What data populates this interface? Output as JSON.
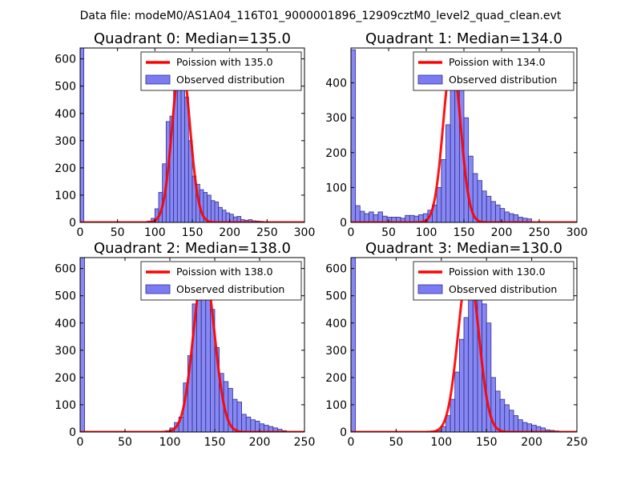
{
  "figure": {
    "suptitle": "Data file: modeM0/AS1A04_116T01_9000001896_12909cztM0_level2_quad_clean.evt"
  },
  "colors": {
    "bar_fill": "#7b7bf3",
    "bar_stroke": "#30308a",
    "curve": "#ff0000",
    "frame": "#000000",
    "legend_border": "#000000"
  },
  "chart_data": [
    {
      "type": "bar",
      "title": "Quadrant 0: Median=135.0",
      "xlim": [
        0,
        300
      ],
      "ylim": [
        0,
        640
      ],
      "xticks": [
        0,
        50,
        100,
        150,
        200,
        250,
        300
      ],
      "yticks": [
        0,
        100,
        200,
        300,
        400,
        500,
        600
      ],
      "bin_width": 5,
      "legend": [
        "Poission with 135.0",
        "Observed distribution"
      ],
      "legend_loc": "upper right",
      "poisson_mean": 135,
      "poisson_peak": 600,
      "bins": [
        [
          0,
          640
        ],
        [
          85,
          2
        ],
        [
          90,
          5
        ],
        [
          95,
          15
        ],
        [
          100,
          50
        ],
        [
          105,
          110
        ],
        [
          110,
          215
        ],
        [
          115,
          370
        ],
        [
          120,
          390
        ],
        [
          125,
          530
        ],
        [
          130,
          590
        ],
        [
          135,
          600
        ],
        [
          140,
          460
        ],
        [
          145,
          300
        ],
        [
          150,
          170
        ],
        [
          155,
          140
        ],
        [
          160,
          120
        ],
        [
          165,
          110
        ],
        [
          170,
          100
        ],
        [
          175,
          80
        ],
        [
          180,
          75
        ],
        [
          185,
          55
        ],
        [
          190,
          45
        ],
        [
          195,
          35
        ],
        [
          200,
          30
        ],
        [
          205,
          20
        ],
        [
          210,
          22
        ],
        [
          215,
          10
        ],
        [
          220,
          8
        ],
        [
          225,
          10
        ],
        [
          230,
          6
        ],
        [
          235,
          5
        ],
        [
          240,
          4
        ],
        [
          245,
          2
        ]
      ]
    },
    {
      "type": "bar",
      "title": "Quadrant 1: Median=134.0",
      "xlim": [
        0,
        300
      ],
      "ylim": [
        0,
        500
      ],
      "xticks": [
        0,
        50,
        100,
        150,
        200,
        250,
        300
      ],
      "yticks": [
        0,
        100,
        200,
        300,
        400
      ],
      "bin_width": 6,
      "legend": [
        "Poission with 134.0",
        "Observed distribution"
      ],
      "legend_loc": "upper right",
      "poisson_mean": 134,
      "poisson_peak": 465,
      "bins": [
        [
          0,
          495
        ],
        [
          6,
          48
        ],
        [
          12,
          32
        ],
        [
          18,
          25
        ],
        [
          24,
          30
        ],
        [
          30,
          22
        ],
        [
          36,
          30
        ],
        [
          42,
          18
        ],
        [
          48,
          15
        ],
        [
          54,
          15
        ],
        [
          60,
          15
        ],
        [
          66,
          12
        ],
        [
          72,
          20
        ],
        [
          78,
          20
        ],
        [
          84,
          18
        ],
        [
          90,
          22
        ],
        [
          96,
          25
        ],
        [
          102,
          35
        ],
        [
          108,
          50
        ],
        [
          114,
          100
        ],
        [
          120,
          180
        ],
        [
          126,
          280
        ],
        [
          132,
          390
        ],
        [
          138,
          470
        ],
        [
          144,
          380
        ],
        [
          150,
          300
        ],
        [
          156,
          190
        ],
        [
          162,
          140
        ],
        [
          168,
          120
        ],
        [
          174,
          90
        ],
        [
          180,
          75
        ],
        [
          186,
          60
        ],
        [
          192,
          50
        ],
        [
          198,
          40
        ],
        [
          204,
          30
        ],
        [
          210,
          25
        ],
        [
          216,
          22
        ],
        [
          222,
          15
        ],
        [
          228,
          12
        ],
        [
          234,
          10
        ]
      ]
    },
    {
      "type": "bar",
      "title": "Quadrant 2: Median=138.0",
      "xlim": [
        0,
        250
      ],
      "ylim": [
        0,
        640
      ],
      "xticks": [
        0,
        50,
        100,
        150,
        200,
        250
      ],
      "yticks": [
        0,
        100,
        200,
        300,
        400,
        500,
        600
      ],
      "bin_width": 5,
      "legend": [
        "Poission with 138.0",
        "Observed distribution"
      ],
      "legend_loc": "upper right",
      "poisson_mean": 138,
      "poisson_peak": 600,
      "bins": [
        [
          0,
          640
        ],
        [
          95,
          5
        ],
        [
          100,
          15
        ],
        [
          105,
          35
        ],
        [
          110,
          55
        ],
        [
          115,
          180
        ],
        [
          120,
          280
        ],
        [
          125,
          470
        ],
        [
          130,
          510
        ],
        [
          135,
          560
        ],
        [
          140,
          580
        ],
        [
          145,
          450
        ],
        [
          150,
          310
        ],
        [
          155,
          215
        ],
        [
          160,
          185
        ],
        [
          165,
          160
        ],
        [
          170,
          120
        ],
        [
          175,
          110
        ],
        [
          180,
          65
        ],
        [
          185,
          55
        ],
        [
          190,
          45
        ],
        [
          195,
          40
        ],
        [
          200,
          30
        ],
        [
          205,
          25
        ],
        [
          210,
          20
        ],
        [
          215,
          15
        ],
        [
          220,
          10
        ],
        [
          225,
          5
        ]
      ]
    },
    {
      "type": "bar",
      "title": "Quadrant 3: Median=130.0",
      "xlim": [
        0,
        250
      ],
      "ylim": [
        0,
        640
      ],
      "xticks": [
        0,
        50,
        100,
        150,
        200,
        250
      ],
      "yticks": [
        0,
        100,
        200,
        300,
        400,
        500,
        600
      ],
      "bin_width": 5,
      "legend": [
        "Poission with 130.0",
        "Observed distribution"
      ],
      "legend_loc": "upper right",
      "poisson_mean": 130,
      "poisson_peak": 600,
      "bins": [
        [
          0,
          640
        ],
        [
          95,
          5
        ],
        [
          100,
          20
        ],
        [
          105,
          60
        ],
        [
          110,
          120
        ],
        [
          115,
          220
        ],
        [
          120,
          340
        ],
        [
          125,
          420
        ],
        [
          130,
          530
        ],
        [
          135,
          590
        ],
        [
          140,
          580
        ],
        [
          145,
          470
        ],
        [
          150,
          400
        ],
        [
          155,
          200
        ],
        [
          160,
          150
        ],
        [
          165,
          120
        ],
        [
          170,
          100
        ],
        [
          175,
          80
        ],
        [
          180,
          60
        ],
        [
          185,
          45
        ],
        [
          190,
          35
        ],
        [
          195,
          30
        ],
        [
          200,
          25
        ],
        [
          205,
          20
        ],
        [
          210,
          15
        ],
        [
          215,
          8
        ],
        [
          220,
          6
        ],
        [
          225,
          4
        ]
      ]
    }
  ]
}
